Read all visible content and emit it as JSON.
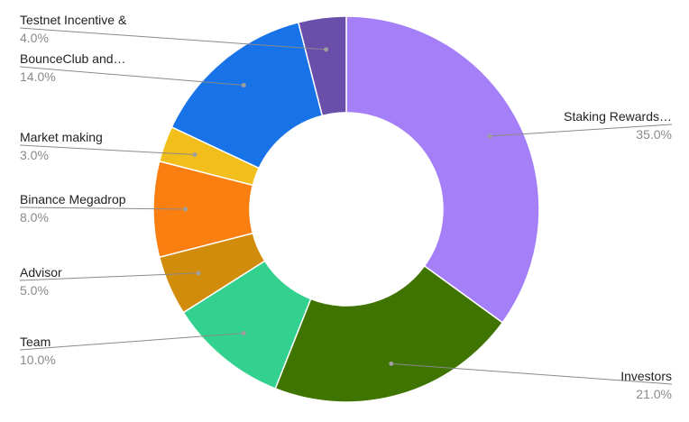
{
  "chart_data": {
    "type": "pie",
    "donut": true,
    "slices": [
      {
        "label": "Staking Rewards…",
        "value": 35.0,
        "display": "35.0%",
        "color": "#a47ff7"
      },
      {
        "label": "Investors",
        "value": 21.0,
        "display": "21.0%",
        "color": "#3f7400"
      },
      {
        "label": "Team",
        "value": 10.0,
        "display": "10.0%",
        "color": "#33d18f"
      },
      {
        "label": "Advisor",
        "value": 5.0,
        "display": "5.0%",
        "color": "#d18c0b"
      },
      {
        "label": "Binance Megadrop",
        "value": 8.0,
        "display": "8.0%",
        "color": "#fb7f10"
      },
      {
        "label": "Market making",
        "value": 3.0,
        "display": "3.0%",
        "color": "#f2be1b"
      },
      {
        "label": "BounceClub and…",
        "value": 14.0,
        "display": "14.0%",
        "color": "#1973e8"
      },
      {
        "label": "Testnet Incentive &",
        "value": 4.0,
        "display": "4.0%",
        "color": "#6a4faa"
      }
    ],
    "legend": "none",
    "labels": "outside with leader lines"
  }
}
